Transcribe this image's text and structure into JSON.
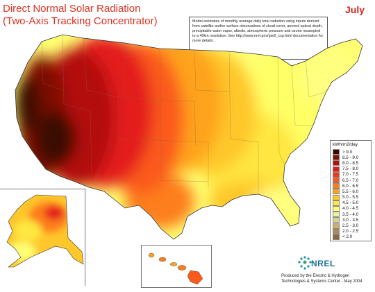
{
  "title": {
    "line1": "Direct Normal Solar Radiation",
    "line2": "(Two-Axis Tracking Concentrator)"
  },
  "month": "July",
  "note": "Model estimates of monthly average daily total radiation using inputs derived from satellite and/or surface observations of cloud cover, aerosol optical depth, precipitable water vapor, albedo, atmospheric pressure and ozone resampled to a 40km resolution.  See http://www.nrel.gov/gis/il_csp.html documentation for more details.",
  "legend": {
    "title": "kWh/m2/day",
    "entries": [
      {
        "label": "> 9.0",
        "color": "#3a0a00"
      },
      {
        "label": "8.5 - 9.0",
        "color": "#7d0d05"
      },
      {
        "label": "8.0 - 8.5",
        "color": "#b3100c"
      },
      {
        "label": "7.5 - 8.0",
        "color": "#e31a1c"
      },
      {
        "label": "7.0 - 7.5",
        "color": "#f4361a"
      },
      {
        "label": "6.5 - 7.0",
        "color": "#fb5a1a"
      },
      {
        "label": "6.0 - 6.5",
        "color": "#fd7e1c"
      },
      {
        "label": "5.5 - 6.0",
        "color": "#fea31e"
      },
      {
        "label": "5.0 - 5.5",
        "color": "#fec72c"
      },
      {
        "label": "4.5 - 5.0",
        "color": "#ffe640"
      },
      {
        "label": "4.0 - 4.5",
        "color": "#ffff73"
      },
      {
        "label": "3.5 - 4.0",
        "color": "#e6f5a0"
      },
      {
        "label": "3.0 - 3.5",
        "color": "#d9d08a"
      },
      {
        "label": "2.5 - 3.0",
        "color": "#c8b070"
      },
      {
        "label": "2.0 - 2.5",
        "color": "#b08a52"
      },
      {
        "label": "< 2.0",
        "color": "#8a6a3a"
      }
    ]
  },
  "logo_text": "NREL",
  "credit": {
    "line1": "Produced by the Electric & Hydrogen",
    "line2": "Technologies & Systems Center - May 2004"
  }
}
